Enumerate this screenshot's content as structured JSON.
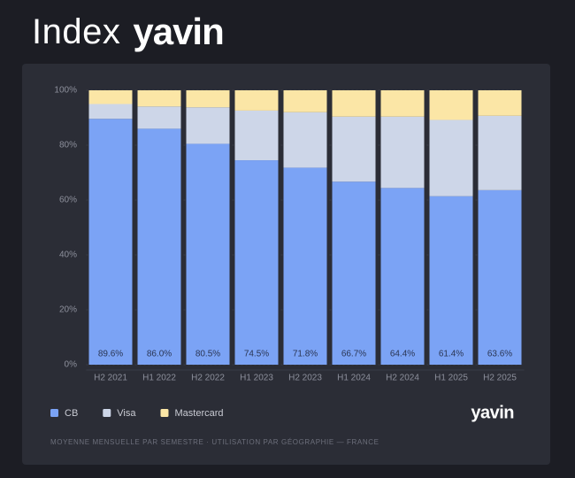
{
  "header": {
    "title": "Index",
    "brand": "yavin"
  },
  "chart_data": {
    "type": "stacked-bar",
    "categories": [
      "H2 2021",
      "H1 2022",
      "H2 2022",
      "H1 2023",
      "H2 2023",
      "H1 2024",
      "H2 2024",
      "H1 2025",
      "H2 2025"
    ],
    "series": [
      {
        "name": "CB",
        "color": "#7ba3f5",
        "values": [
          89.6,
          86.0,
          80.5,
          74.5,
          71.8,
          66.7,
          64.4,
          61.4,
          63.6
        ],
        "value_labels": [
          "89.6%",
          "86.0%",
          "80.5%",
          "74.5%",
          "71.8%",
          "66.7%",
          "64.4%",
          "61.4%",
          "63.6%"
        ]
      },
      {
        "name": "Visa",
        "color": "#cdd6e8",
        "values": [
          5.4,
          8.1,
          13.3,
          18.1,
          20.2,
          23.7,
          26.0,
          27.8,
          27.1
        ]
      },
      {
        "name": "Mastercard",
        "color": "#fbe6a6",
        "values": [
          5.0,
          5.9,
          6.2,
          7.4,
          8.0,
          9.6,
          9.6,
          10.8,
          9.3
        ]
      }
    ],
    "ylim": [
      0,
      100
    ],
    "yticks": [
      {
        "value": 0,
        "label": "0%"
      },
      {
        "value": 20,
        "label": "20%"
      },
      {
        "value": 40,
        "label": "40%"
      },
      {
        "value": 60,
        "label": "60%"
      },
      {
        "value": 80,
        "label": "80%"
      },
      {
        "value": 100,
        "label": "100%"
      }
    ],
    "grid": true,
    "legend": "bottom-left"
  },
  "footer": {
    "logo": "yavin",
    "note": "MOYENNE MENSUELLE PAR SEMESTRE · UTILISATION PAR GÉOGRAPHIE — FRANCE"
  }
}
